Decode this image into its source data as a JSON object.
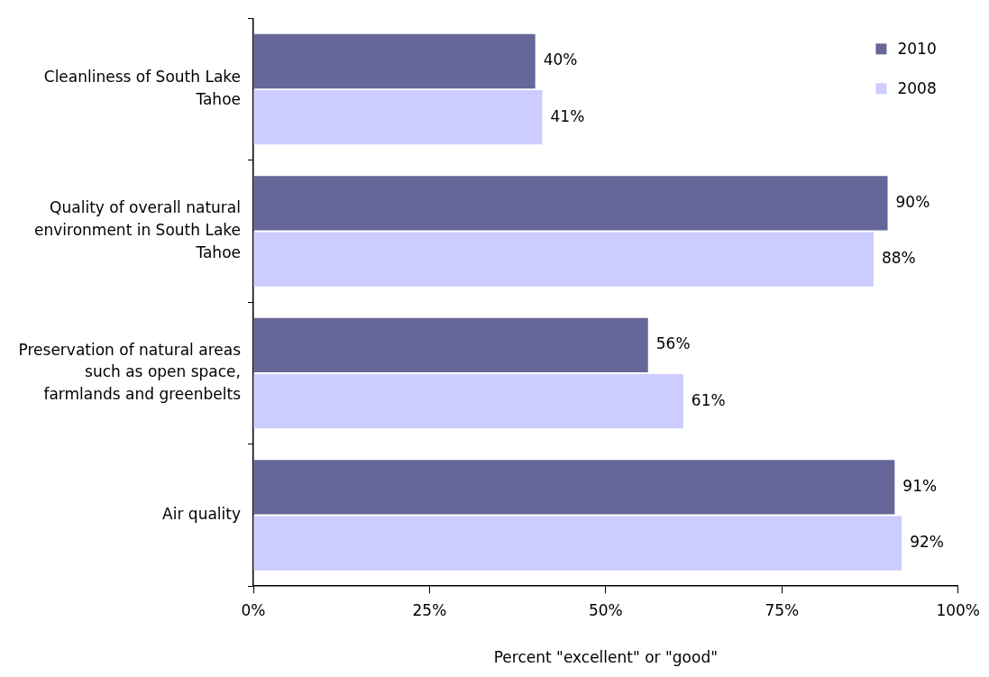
{
  "chart_data": {
    "type": "bar",
    "orientation": "horizontal",
    "xlabel": "Percent \"excellent\" or \"good\"",
    "categories": [
      "Cleanliness of South Lake Tahoe",
      "Quality of overall natural environment in South Lake Tahoe",
      "Preservation of natural areas such as open space, farmlands and greenbelts",
      "Air quality"
    ],
    "series": [
      {
        "name": "2010",
        "color": "#666699",
        "values": [
          40,
          90,
          56,
          91
        ],
        "value_labels": [
          "40%",
          "90%",
          "56%",
          "91%"
        ]
      },
      {
        "name": "2008",
        "color": "#ccccff",
        "values": [
          41,
          88,
          61,
          92
        ],
        "value_labels": [
          "41%",
          "88%",
          "61%",
          "92%"
        ]
      }
    ],
    "xlim": [
      0,
      100
    ],
    "xticks": [
      {
        "value": 0,
        "label": "0%"
      },
      {
        "value": 25,
        "label": "25%"
      },
      {
        "value": 50,
        "label": "50%"
      },
      {
        "value": 75,
        "label": "75%"
      },
      {
        "value": 100,
        "label": "100%"
      }
    ],
    "grid": false,
    "legend": "top right"
  }
}
